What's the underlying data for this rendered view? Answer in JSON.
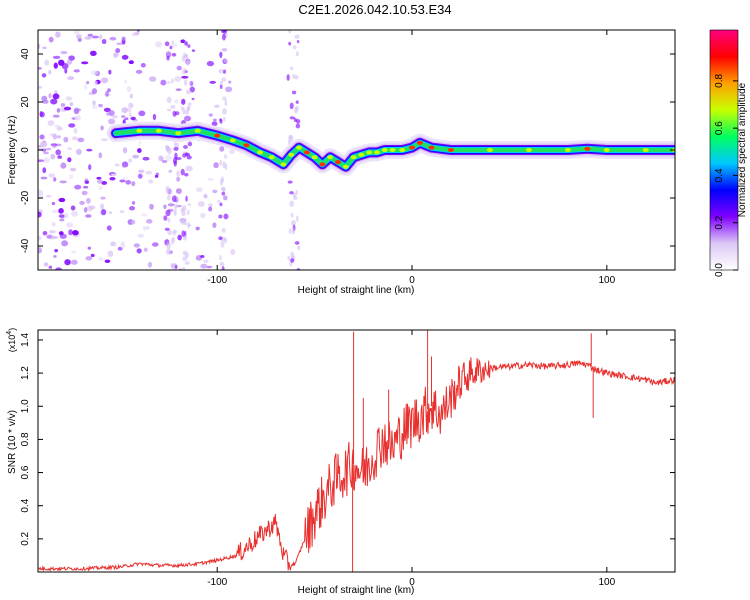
{
  "figure_title": "C2E1.2026.042.10.53.E34",
  "chart_data": [
    {
      "type": "heatmap",
      "name": "spectrogram",
      "xlabel": "Height of straight line (km)",
      "ylabel": "Frequency (Hz)",
      "xlim": [
        -192,
        135
      ],
      "ylim": [
        -50,
        50
      ],
      "xticks": [
        -100,
        0,
        100
      ],
      "xtick_labels": [
        "-100",
        "0",
        "100"
      ],
      "yticks": [
        -40,
        -20,
        0,
        20,
        40
      ],
      "ytick_labels": [
        "-40",
        "-20",
        "0",
        "20",
        "40"
      ],
      "ridge_x": [
        -152,
        -140,
        -130,
        -120,
        -110,
        -100,
        -92,
        -85,
        -78,
        -72,
        -66,
        -62,
        -58,
        -54,
        -50,
        -46,
        -42,
        -38,
        -34,
        -30,
        -26,
        -22,
        -18,
        -14,
        -10,
        -5,
        0,
        4,
        10,
        20,
        40,
        60,
        80,
        90,
        100,
        120,
        135
      ],
      "ridge_y": [
        7,
        8,
        8,
        7,
        8,
        6,
        4,
        2,
        -1,
        -3,
        -6,
        -2,
        1,
        -1,
        -3,
        -6,
        -3,
        -5,
        -7,
        -3,
        -2,
        -1,
        -1,
        0,
        0,
        0,
        1,
        3,
        1,
        0,
        0,
        0,
        0,
        0.5,
        0,
        0,
        0
      ],
      "colorbar": {
        "label": "Normalized spectral amplitude",
        "range": [
          0,
          1
        ],
        "ticks": [
          0.0,
          0.2,
          0.4,
          0.6,
          0.8
        ],
        "tick_labels": [
          "0.0",
          "0.2",
          "0.4",
          "0.6",
          "0.8"
        ],
        "colors": [
          "#ffffff",
          "#dcc8f5",
          "#8000ff",
          "#0000ff",
          "#00c8ff",
          "#00ff60",
          "#c8ff00",
          "#ffa000",
          "#ff0000",
          "#ff007f"
        ]
      }
    },
    {
      "type": "line",
      "name": "snr",
      "xlabel": "Height of straight line (km)",
      "ylabel": "SNR (10 * v/v)",
      "scale_note": "(x10",
      "scale_exp": "4",
      "scale_close": ")",
      "xlim": [
        -192,
        135
      ],
      "ylim": [
        0,
        1.46
      ],
      "xticks": [
        -100,
        0,
        100
      ],
      "xtick_labels": [
        "-100",
        "0",
        "100"
      ],
      "yticks": [
        0.2,
        0.4,
        0.6,
        0.8,
        1.0,
        1.2,
        1.4
      ],
      "ytick_labels": [
        "0.2",
        "0.4",
        "0.6",
        "0.8",
        "1.0",
        "1.2",
        "1.4"
      ],
      "color": "#e8302e",
      "series": [
        {
          "name": "SNR",
          "x": [
            -192,
            -170,
            -150,
            -140,
            -130,
            -120,
            -110,
            -100,
            -90,
            -85,
            -80,
            -75,
            -70,
            -66,
            -63,
            -60,
            -55,
            -50,
            -45,
            -40,
            -35,
            -30,
            -25,
            -20,
            -15,
            -10,
            -5,
            0,
            5,
            10,
            15,
            20,
            25,
            30,
            40,
            50,
            60,
            70,
            80,
            85,
            90,
            95,
            100,
            110,
            120,
            125,
            135
          ],
          "y": [
            0.02,
            0.02,
            0.03,
            0.05,
            0.04,
            0.04,
            0.05,
            0.07,
            0.1,
            0.15,
            0.2,
            0.25,
            0.3,
            0.1,
            0.04,
            0.05,
            0.2,
            0.35,
            0.45,
            0.55,
            0.6,
            0.65,
            0.6,
            0.7,
            0.8,
            0.75,
            0.85,
            0.9,
            0.95,
            1.0,
            0.95,
            1.05,
            1.15,
            1.2,
            1.23,
            1.24,
            1.25,
            1.24,
            1.25,
            1.26,
            1.25,
            1.22,
            1.2,
            1.18,
            1.16,
            1.14,
            1.16
          ]
        }
      ],
      "spikes": [
        {
          "x": -30,
          "y": 1.45
        },
        {
          "x": -30.5,
          "y": 0.0
        },
        {
          "x": -25,
          "y": 1.05
        },
        {
          "x": -12,
          "y": 1.1
        },
        {
          "x": 8,
          "y": 1.5
        },
        {
          "x": 10,
          "y": 1.3
        },
        {
          "x": 92,
          "y": 1.44
        },
        {
          "x": 93,
          "y": 0.93
        }
      ]
    }
  ]
}
